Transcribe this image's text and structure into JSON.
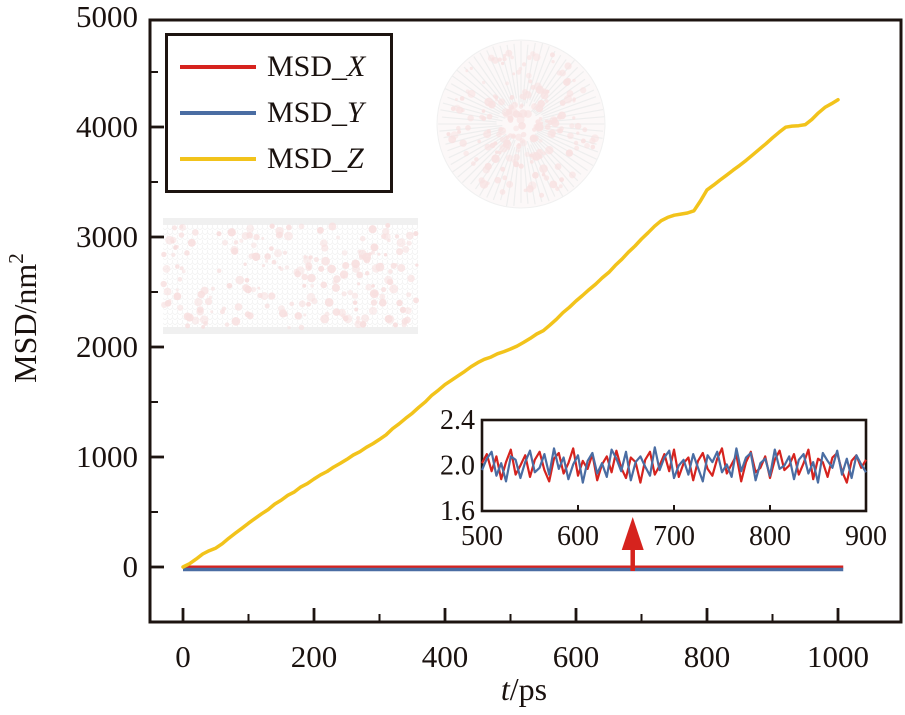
{
  "page": {
    "background": "#ffffff"
  },
  "colors": {
    "msd_x": "#d6231e",
    "msd_y": "#4a6da3",
    "msd_z": "#f2c31b",
    "frame": "#1d1410",
    "text": "#1a120f",
    "arrow": "#d6231e",
    "molecule_pink": "#f2c6c6",
    "mesh_gray": "#e7e7e7"
  },
  "legend": {
    "items": [
      {
        "prefix": "MSD_",
        "letter": "X",
        "color": "#d6231e"
      },
      {
        "prefix": "MSD_",
        "letter": "Y",
        "color": "#4a6da3"
      },
      {
        "prefix": "MSD_",
        "letter": "Z",
        "color": "#f2c31b"
      }
    ]
  },
  "chart_data": {
    "type": "line",
    "title": "",
    "xlabel": {
      "italic": "t",
      "rest": "/ps"
    },
    "ylabel": {
      "base": "MSD/nm",
      "superscript": "2"
    },
    "x_range": [
      -50,
      1096
    ],
    "y_range": [
      -509,
      5000
    ],
    "grid": false,
    "legend_position": "top-left",
    "x_major_ticks": [
      0,
      200,
      400,
      600,
      800,
      1000
    ],
    "x_minor_ticks": [
      100,
      300,
      500,
      700,
      900
    ],
    "y_major_ticks": [
      0,
      1000,
      2000,
      3000,
      4000,
      5000
    ],
    "y_minor_ticks": [
      500,
      1500,
      2500,
      3500,
      4500
    ],
    "series": [
      {
        "name": "MSD_X",
        "color": "#d6231e",
        "shape": "constant",
        "constant_value": 2,
        "x_start": 0,
        "x_end": 1008
      },
      {
        "name": "MSD_Y",
        "color": "#4a6da3",
        "shape": "constant",
        "constant_value": 2,
        "x_start": 0,
        "x_end": 1008
      },
      {
        "name": "MSD_Z",
        "color": "#f2c31b",
        "x_start": 0,
        "x_step": 10,
        "values": [
          0,
          30,
          72,
          118,
          148,
          172,
          212,
          262,
          308,
          352,
          398,
          442,
          484,
          522,
          572,
          608,
          652,
          683,
          728,
          758,
          800,
          838,
          868,
          908,
          942,
          978,
          1018,
          1048,
          1088,
          1122,
          1160,
          1202,
          1258,
          1302,
          1352,
          1398,
          1452,
          1502,
          1562,
          1608,
          1658,
          1698,
          1738,
          1778,
          1822,
          1858,
          1888,
          1908,
          1938,
          1958,
          1982,
          2008,
          2042,
          2078,
          2118,
          2148,
          2198,
          2252,
          2312,
          2362,
          2418,
          2468,
          2522,
          2572,
          2628,
          2678,
          2742,
          2798,
          2862,
          2918,
          2982,
          3038,
          3098,
          3148,
          3178,
          3198,
          3208,
          3218,
          3238,
          3328,
          3428,
          3472,
          3518,
          3562,
          3608,
          3652,
          3698,
          3748,
          3798,
          3848,
          3902,
          3952,
          3998,
          4008,
          4012,
          4022,
          4068,
          4128,
          4178,
          4212,
          4248
        ]
      }
    ],
    "inset": {
      "x_range": [
        500,
        900
      ],
      "y_range": [
        1.6,
        2.4
      ],
      "x_tick_labels": [
        "500",
        "600",
        "700",
        "800",
        "900"
      ],
      "x_ticks": [
        500,
        600,
        700,
        800,
        900
      ],
      "y_tick_labels": [
        "1.6",
        "2.0",
        "2.4"
      ],
      "y_ticks": [
        1.6,
        2.0,
        2.4
      ],
      "arrow_x_ps": 657,
      "x_start": 500,
      "x_step": 5,
      "series": [
        {
          "name": "MSD_X",
          "color": "#d6231e",
          "values": [
            2.02,
            2.1,
            1.95,
            2.08,
            1.88,
            2.03,
            2.14,
            1.92,
            2.0,
            2.09,
            1.9,
            2.05,
            2.12,
            1.96,
            1.86,
            2.06,
            2.11,
            1.93,
            2.02,
            2.15,
            1.91,
            2.04,
            1.97,
            2.1,
            1.87,
            2.01,
            2.08,
            1.94,
            2.13,
            1.98,
            1.89,
            2.07,
            2.03,
            1.85,
            2.05,
            2.12,
            1.92,
            2.0,
            2.1,
            1.95,
            2.14,
            1.9,
            2.02,
            2.07,
            1.87,
            2.04,
            2.11,
            1.97,
            1.91,
            2.06,
            2.15,
            1.93,
            2.01,
            2.09,
            1.86,
            2.03,
            2.12,
            1.94,
            1.98,
            2.08,
            1.89,
            2.05,
            2.13,
            1.96,
            2.0,
            2.1,
            1.92,
            2.02,
            2.14,
            1.88,
            2.06,
            2.03,
            1.9,
            2.07,
            2.11,
            1.95,
            1.85,
            2.04,
            2.09,
            1.98,
            2.05
          ]
        },
        {
          "name": "MSD_Y",
          "color": "#4a6da3",
          "values": [
            1.96,
            2.06,
            2.12,
            1.91,
            2.02,
            1.86,
            2.08,
            2.05,
            1.89,
            2.03,
            2.13,
            1.94,
            1.98,
            2.1,
            1.92,
            2.15,
            1.97,
            2.07,
            1.88,
            2.01,
            2.09,
            1.85,
            2.04,
            2.11,
            1.93,
            2.02,
            1.9,
            2.14,
            2.06,
            1.95,
            2.12,
            1.87,
            2.03,
            2.08,
            1.99,
            1.91,
            2.16,
            1.96,
            2.07,
            2.13,
            1.89,
            2.0,
            2.05,
            1.92,
            2.1,
            1.98,
            1.86,
            2.09,
            2.03,
            2.12,
            1.94,
            2.01,
            1.9,
            2.15,
            1.95,
            2.07,
            2.11,
            1.87,
            2.02,
            2.06,
            1.91,
            2.14,
            1.97,
            2.0,
            2.08,
            1.88,
            2.05,
            2.1,
            1.93,
            2.03,
            1.85,
            2.11,
            2.04,
            1.98,
            2.13,
            1.92,
            2.06,
            1.89,
            2.09,
            2.01,
            1.94
          ]
        }
      ]
    }
  },
  "decorations": {
    "molecule_side_view": "faint rectangular nanotube-membrane snapshot with pink particles",
    "molecule_top_view": "faint circular nanotube cross-section snapshot with pink particles"
  }
}
